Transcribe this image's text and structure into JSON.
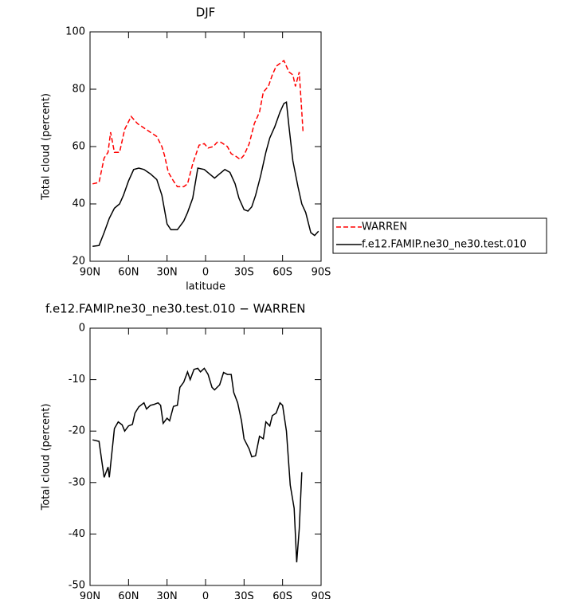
{
  "chart_data": [
    {
      "type": "line",
      "title": "DJF",
      "xlabel": "latitude",
      "ylabel": "Total cloud (percent)",
      "xlim": [
        90,
        -90
      ],
      "ylim": [
        20,
        100
      ],
      "xticks": [
        {
          "value": 90,
          "label": "90N"
        },
        {
          "value": 60,
          "label": "60N"
        },
        {
          "value": 30,
          "label": "30N"
        },
        0,
        {
          "value": -30,
          "label": "30S"
        },
        {
          "value": -60,
          "label": "60S"
        },
        {
          "value": -90,
          "label": "90S"
        }
      ],
      "yticks": [
        20,
        40,
        60,
        80,
        100
      ],
      "legend": "right",
      "series": [
        {
          "name": "WARREN",
          "color": "#ff0000",
          "dashed": true,
          "x": [
            88,
            83,
            79,
            76,
            74,
            71,
            67,
            63,
            58,
            53,
            48,
            43,
            38,
            34,
            32,
            29,
            25,
            22,
            17,
            14,
            10,
            5,
            1,
            -2,
            -6,
            -9,
            -12,
            -17,
            -20,
            -24,
            -27,
            -30,
            -34,
            -38,
            -42,
            -45,
            -49,
            -52,
            -55,
            -58,
            -61,
            -65,
            -68,
            -70,
            -73,
            -76
          ],
          "values": [
            47,
            47.5,
            56,
            58,
            65,
            58,
            58,
            66,
            70.5,
            68,
            66.5,
            65,
            63.5,
            60,
            57,
            51,
            48,
            46,
            46,
            47,
            54,
            60.5,
            61,
            59.5,
            60,
            61.5,
            61.5,
            60,
            57.5,
            56.5,
            55.5,
            57,
            61,
            68,
            72,
            79,
            81,
            85,
            88,
            89,
            90,
            86,
            85,
            81,
            86,
            65
          ]
        },
        {
          "name": "f.e12.FAMIP.ne30_ne30.test.010",
          "color": "#000000",
          "dashed": false,
          "x": [
            88,
            83,
            79,
            75,
            71,
            67,
            64,
            60,
            56,
            52,
            48,
            43,
            38,
            34,
            30,
            27,
            22,
            17,
            14,
            10,
            6,
            1,
            -3,
            -7,
            -11,
            -15,
            -19,
            -23,
            -26,
            -30,
            -33,
            -36,
            -39,
            -43,
            -47,
            -50,
            -54,
            -58,
            -61,
            -63,
            -65,
            -68,
            -72,
            -75,
            -78,
            -82,
            -85,
            -88
          ],
          "values": [
            25.2,
            25.5,
            30,
            35,
            38.5,
            40,
            43,
            48,
            52,
            52.5,
            52,
            50.5,
            48.5,
            43,
            33,
            31,
            31,
            34,
            37,
            42,
            52.5,
            52,
            50.5,
            49,
            50.5,
            52,
            51,
            47,
            42,
            38,
            37.5,
            39,
            43,
            50,
            58,
            63,
            67,
            72,
            75,
            75.5,
            67,
            55,
            46,
            40,
            37,
            30,
            29,
            30.5
          ]
        }
      ]
    },
    {
      "type": "line",
      "title": "f.e12.FAMIP.ne30_ne30.test.010 − WARREN",
      "xlabel": "latitude",
      "ylabel": "Total cloud (percent)",
      "xlim": [
        90,
        -90
      ],
      "ylim": [
        -50,
        0
      ],
      "xticks": [
        {
          "value": 90,
          "label": "90N"
        },
        {
          "value": 60,
          "label": "60N"
        },
        {
          "value": 30,
          "label": "30N"
        },
        0,
        {
          "value": -30,
          "label": "30S"
        },
        {
          "value": -60,
          "label": "60S"
        },
        {
          "value": -90,
          "label": "90S"
        }
      ],
      "yticks": [
        -50,
        -40,
        -30,
        -20,
        -10,
        0
      ],
      "series": [
        {
          "color": "#000000",
          "dashed": false,
          "x": [
            88,
            83,
            79,
            76,
            75,
            71,
            68,
            65,
            63,
            60,
            57,
            55,
            52,
            48,
            46,
            43,
            40,
            37,
            35,
            33,
            30,
            28,
            25,
            22,
            20,
            17,
            14,
            12,
            9,
            6,
            4,
            1,
            -2,
            -5,
            -7,
            -11,
            -14,
            -17,
            -20,
            -22,
            -25,
            -28,
            -30,
            -34,
            -36,
            -39,
            -42,
            -45,
            -47,
            -50,
            -52,
            -55,
            -58,
            -60,
            -63,
            -66,
            -69,
            -71,
            -73,
            -75
          ],
          "values": [
            -21.7,
            -22,
            -29,
            -27,
            -29,
            -19.5,
            -18.2,
            -18.8,
            -20,
            -19,
            -18.7,
            -16.5,
            -15.3,
            -14.5,
            -15.7,
            -15,
            -14.8,
            -14.5,
            -15,
            -18.5,
            -17.5,
            -18,
            -15.2,
            -15,
            -11.5,
            -10.5,
            -8.5,
            -10,
            -8,
            -7.8,
            -8.5,
            -7.8,
            -9,
            -11.5,
            -12,
            -11,
            -8.6,
            -9,
            -9,
            -12.5,
            -14.5,
            -18,
            -21.5,
            -23.5,
            -25,
            -24.8,
            -21,
            -21.5,
            -18.2,
            -19,
            -17,
            -16.5,
            -14.5,
            -15,
            -20,
            -30.5,
            -35,
            -45.5,
            -39,
            -28
          ]
        }
      ]
    }
  ]
}
